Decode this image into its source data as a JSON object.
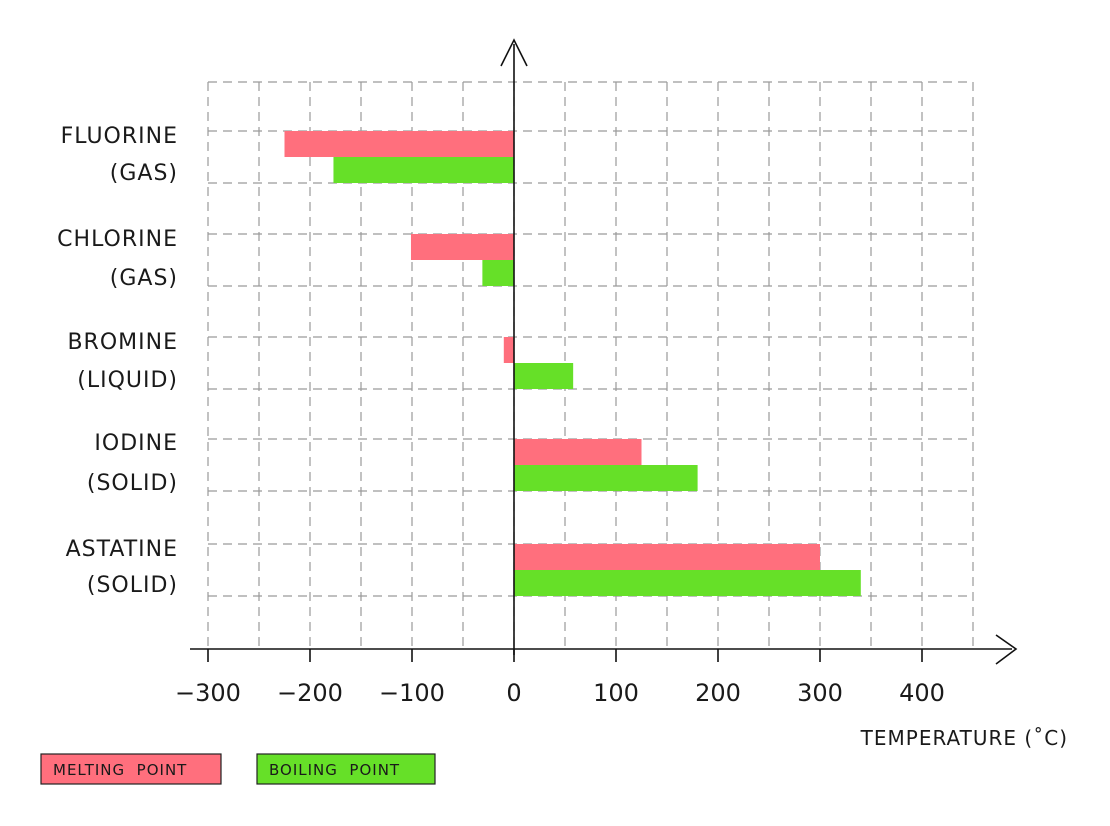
{
  "chart_data": {
    "type": "bar",
    "orientation": "horizontal",
    "categories": [
      {
        "name": "FLUORINE",
        "state": "(GAS)"
      },
      {
        "name": "CHLORINE",
        "state": "(GAS)"
      },
      {
        "name": "BROMINE",
        "state": "(LIQUID)"
      },
      {
        "name": "IODINE",
        "state": "(SOLID)"
      },
      {
        "name": "ASTATINE",
        "state": "(SOLID)"
      }
    ],
    "series": [
      {
        "name": "MELTING  POINT",
        "color": "#ff6f7d",
        "values": [
          -225,
          -101,
          -10,
          125,
          300
        ]
      },
      {
        "name": "BOILING  POINT",
        "color": "#66e028",
        "values": [
          -177,
          -31,
          58,
          180,
          340
        ]
      }
    ],
    "xlabel": "TEMPERATURE (˚C)",
    "xticks": [
      -300,
      -200,
      -100,
      0,
      100,
      200,
      300,
      400
    ],
    "xtick_labels": [
      "−300",
      "−200",
      "−100",
      "0",
      "100",
      "200",
      "300",
      "400"
    ],
    "xlim": [
      -300,
      450
    ],
    "grid": true,
    "legend_position": "bottom-left"
  }
}
